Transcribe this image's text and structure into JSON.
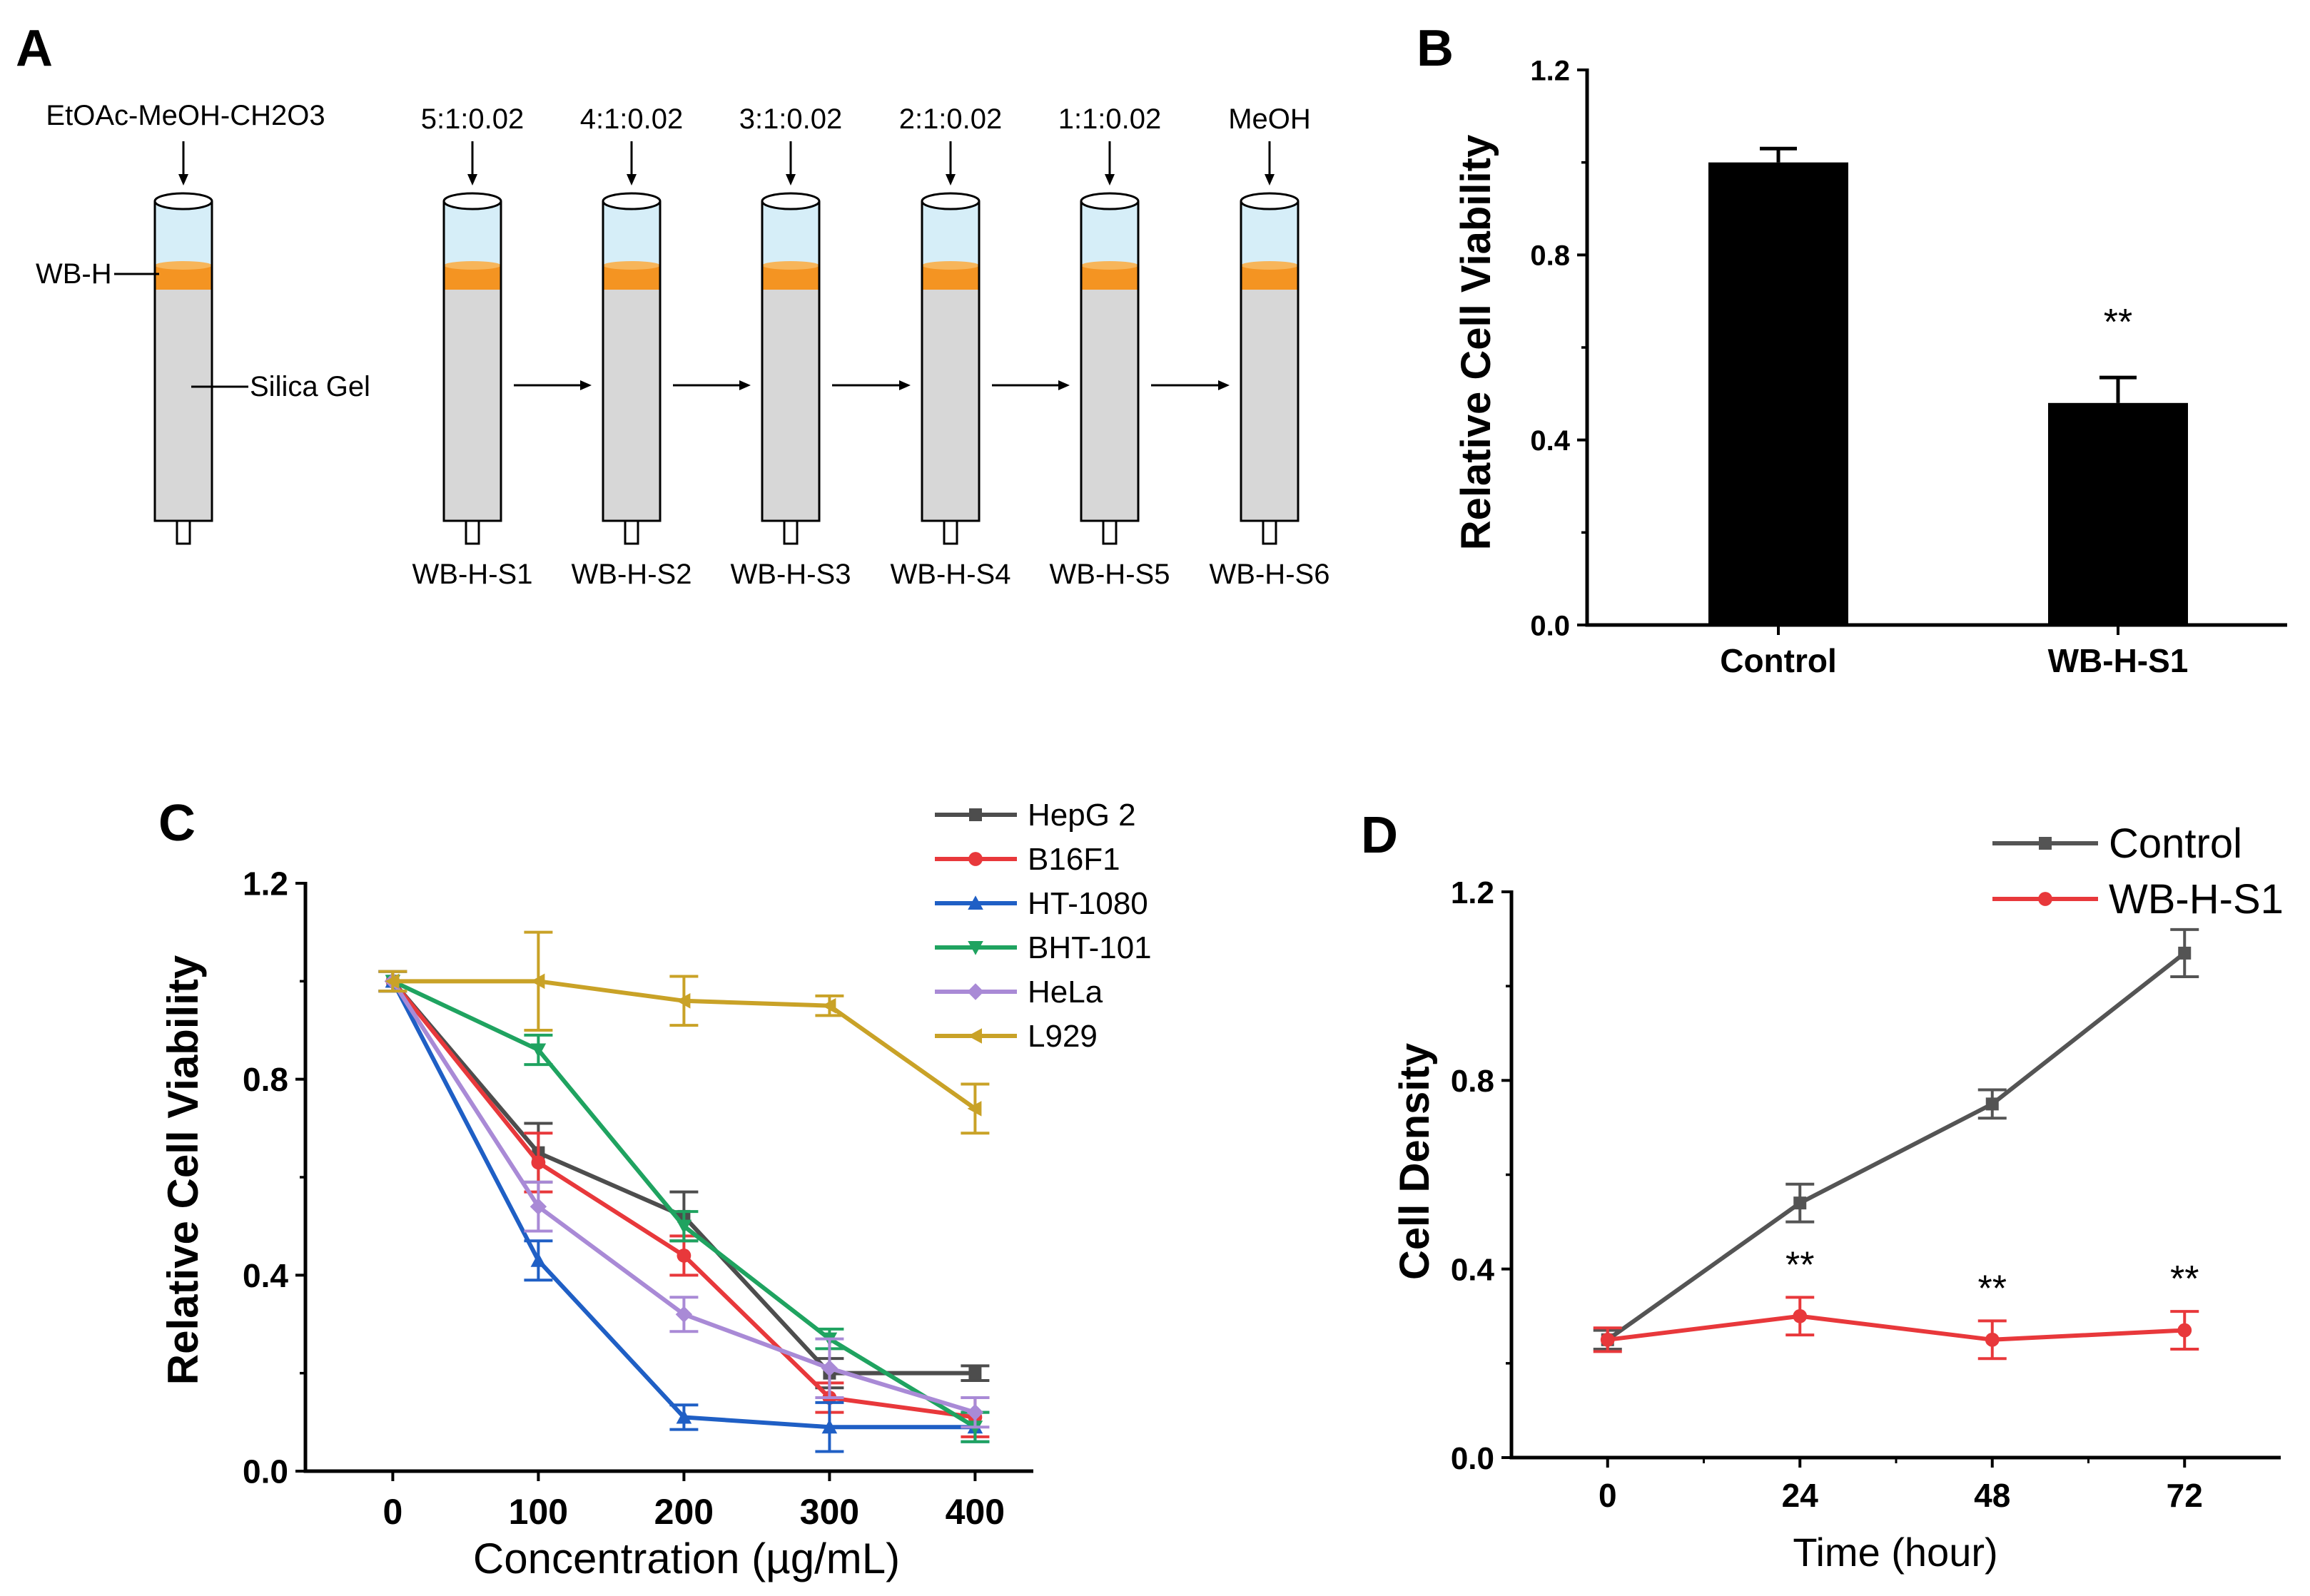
{
  "colors": {
    "column_fill": "#d7d7d7",
    "solvent_fill": "#d6eef8",
    "band_fill": "#f49422",
    "band_top": "#f7b55a",
    "black": "#000000",
    "grey_series": "#545454",
    "red_series": "#e8383b"
  },
  "panel_a": {
    "label": "A",
    "left_solvent": "EtOAc-MeOH-CH2O3",
    "band_label": "WB-H",
    "gel_label": "Silica Gel",
    "columns": [
      {
        "top": "5:1:0.02",
        "bottom": "WB-H-S1"
      },
      {
        "top": "4:1:0.02",
        "bottom": "WB-H-S2"
      },
      {
        "top": "3:1:0.02",
        "bottom": "WB-H-S3"
      },
      {
        "top": "2:1:0.02",
        "bottom": "WB-H-S4"
      },
      {
        "top": "1:1:0.02",
        "bottom": "WB-H-S5"
      },
      {
        "top": "MeOH",
        "bottom": "WB-H-S6"
      }
    ]
  },
  "chart_data": [
    {
      "panel": "B",
      "type": "bar",
      "title": "",
      "xlabel": "",
      "ylabel": "Relative Cell Viability",
      "ylim": [
        0,
        1.2
      ],
      "yticks": [
        "0.0",
        "0.4",
        "0.8",
        "1.2"
      ],
      "categories": [
        "Control",
        "WB-H-S1"
      ],
      "values": [
        1.0,
        0.48
      ],
      "errors": [
        0.03,
        0.055
      ],
      "annotations": [
        "",
        "**"
      ]
    },
    {
      "panel": "C",
      "type": "line",
      "title": "",
      "xlabel": "Concentration (µg/mL)",
      "ylabel": "Relative Cell Viability",
      "ylim": [
        0,
        1.2
      ],
      "xlim": [
        -60,
        440
      ],
      "x": [
        0,
        100,
        200,
        300,
        400
      ],
      "xticks": [
        "0",
        "100",
        "200",
        "300",
        "400"
      ],
      "yticks": [
        "0.0",
        "0.4",
        "0.8",
        "1.2"
      ],
      "legend": "top-right",
      "series": [
        {
          "name": "HepG 2",
          "color": "#4d4d4d",
          "marker": "square",
          "values": [
            1.0,
            0.65,
            0.52,
            0.2,
            0.2
          ],
          "errors": [
            0.02,
            0.06,
            0.05,
            0.03,
            0.015
          ]
        },
        {
          "name": "B16F1",
          "color": "#e8383b",
          "marker": "circle",
          "values": [
            1.0,
            0.63,
            0.44,
            0.15,
            0.11
          ],
          "errors": [
            0.02,
            0.06,
            0.04,
            0.03,
            0.04
          ]
        },
        {
          "name": "HT-1080",
          "color": "#1f5fc5",
          "marker": "triangle-up",
          "values": [
            1.0,
            0.43,
            0.11,
            0.09,
            0.09
          ],
          "errors": [
            0.02,
            0.04,
            0.025,
            0.05,
            0.03
          ]
        },
        {
          "name": "BHT-101",
          "color": "#1fa360",
          "marker": "triangle-down",
          "values": [
            1.0,
            0.86,
            0.5,
            0.27,
            0.09
          ],
          "errors": [
            0.02,
            0.03,
            0.03,
            0.02,
            0.03
          ]
        },
        {
          "name": "HeLa",
          "color": "#a98ad6",
          "marker": "diamond",
          "values": [
            1.0,
            0.54,
            0.32,
            0.21,
            0.12
          ],
          "errors": [
            0.02,
            0.05,
            0.035,
            0.06,
            0.03
          ]
        },
        {
          "name": "L929",
          "color": "#c9a227",
          "marker": "triangle-left",
          "values": [
            1.0,
            1.0,
            0.96,
            0.95,
            0.74
          ],
          "errors": [
            0.02,
            0.1,
            0.05,
            0.02,
            0.05
          ]
        }
      ]
    },
    {
      "panel": "D",
      "type": "line",
      "title": "",
      "xlabel": "Time (hour)",
      "ylabel": "Cell Density",
      "ylim": [
        0,
        1.2
      ],
      "xlim": [
        -12,
        84
      ],
      "x": [
        0,
        24,
        48,
        72
      ],
      "xticks": [
        "0",
        "24",
        "48",
        "72"
      ],
      "yticks": [
        "0.0",
        "0.4",
        "0.8",
        "1.2"
      ],
      "legend": "top-right",
      "series": [
        {
          "name": "Control",
          "color": "#545454",
          "marker": "square",
          "values": [
            0.25,
            0.54,
            0.75,
            1.07
          ],
          "errors": [
            0.02,
            0.04,
            0.03,
            0.05
          ]
        },
        {
          "name": "WB-H-S1",
          "color": "#e8383b",
          "marker": "circle",
          "values": [
            0.25,
            0.3,
            0.25,
            0.27
          ],
          "errors": [
            0.025,
            0.04,
            0.04,
            0.04
          ]
        }
      ],
      "annotations": [
        {
          "x": 24,
          "text": "**"
        },
        {
          "x": 48,
          "text": "**"
        },
        {
          "x": 72,
          "text": "**"
        }
      ]
    }
  ]
}
